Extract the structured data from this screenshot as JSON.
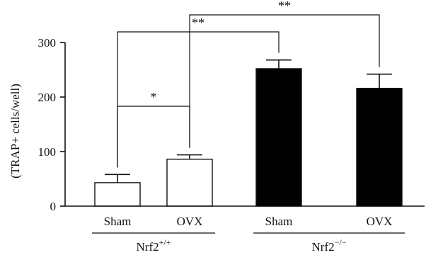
{
  "chart_data": {
    "type": "bar",
    "title": "",
    "ylabel": "(TRAP+ cells/well)",
    "xlabel": "",
    "ylim": [
      0,
      300
    ],
    "yticks": [
      0,
      100,
      200,
      300
    ],
    "grid": false,
    "categories": [
      "Sham",
      "OVX",
      "Sham",
      "OVX"
    ],
    "groups": [
      {
        "label": "Nrf2",
        "sup": "+/+",
        "categories": [
          0,
          1
        ]
      },
      {
        "label": "Nrf2",
        "sup": "−/−",
        "categories": [
          2,
          3
        ]
      }
    ],
    "values": [
      43,
      86,
      252,
      216
    ],
    "errors": [
      15,
      8,
      16,
      26
    ],
    "colors": [
      "#ffffff",
      "#ffffff",
      "#000000",
      "#000000"
    ],
    "significance": [
      {
        "from": 0,
        "to": 1,
        "label": "*"
      },
      {
        "from": 0,
        "to": 2,
        "label": "**"
      },
      {
        "from": 1,
        "to": 3,
        "label": "**"
      }
    ]
  }
}
